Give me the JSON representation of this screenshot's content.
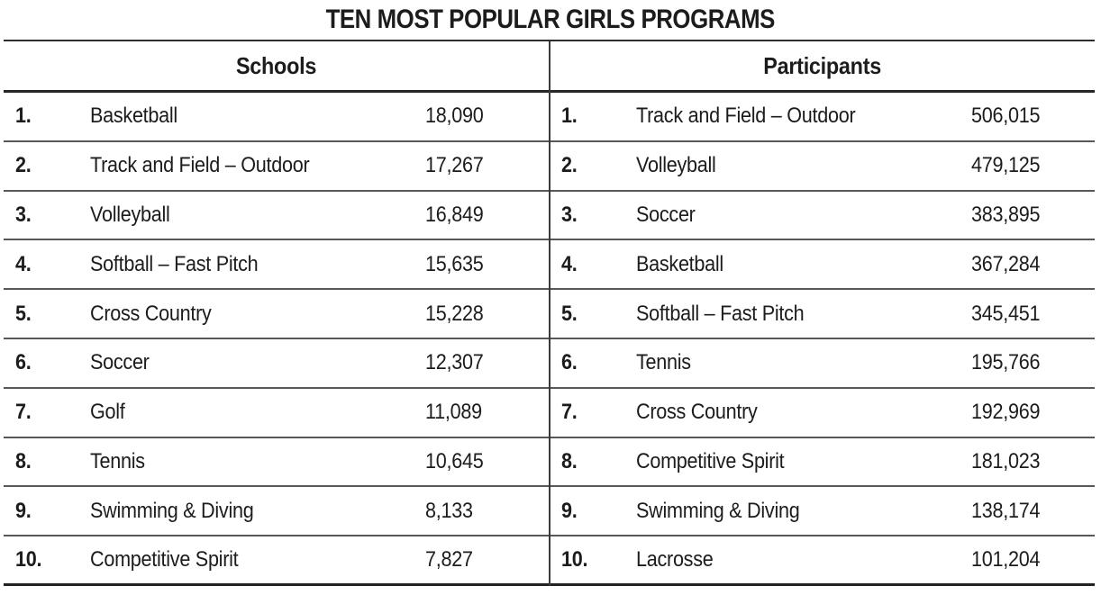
{
  "title": "TEN MOST POPULAR GIRLS PROGRAMS",
  "schools": {
    "header": "Schools",
    "rows": [
      {
        "rank": "1.",
        "name": "Basketball",
        "value": "18,090"
      },
      {
        "rank": "2.",
        "name": "Track and Field – Outdoor",
        "value": "17,267"
      },
      {
        "rank": "3.",
        "name": "Volleyball",
        "value": "16,849"
      },
      {
        "rank": "4.",
        "name": "Softball – Fast Pitch",
        "value": "15,635"
      },
      {
        "rank": "5.",
        "name": "Cross Country",
        "value": "15,228"
      },
      {
        "rank": "6.",
        "name": "Soccer",
        "value": "12,307"
      },
      {
        "rank": "7.",
        "name": "Golf",
        "value": "11,089"
      },
      {
        "rank": "8.",
        "name": "Tennis",
        "value": "10,645"
      },
      {
        "rank": "9.",
        "name": "Swimming & Diving",
        "value": "8,133"
      },
      {
        "rank": "10.",
        "name": "Competitive Spirit",
        "value": "7,827"
      }
    ]
  },
  "participants": {
    "header": "Participants",
    "rows": [
      {
        "rank": "1.",
        "name": "Track and Field – Outdoor",
        "value": "506,015"
      },
      {
        "rank": "2.",
        "name": "Volleyball",
        "value": "479,125"
      },
      {
        "rank": "3.",
        "name": "Soccer",
        "value": "383,895"
      },
      {
        "rank": "4.",
        "name": "Basketball",
        "value": "367,284"
      },
      {
        "rank": "5.",
        "name": "Softball – Fast Pitch",
        "value": "345,451"
      },
      {
        "rank": "6.",
        "name": "Tennis",
        "value": "195,766"
      },
      {
        "rank": "7.",
        "name": "Cross Country",
        "value": "192,969"
      },
      {
        "rank": "8.",
        "name": "Competitive Spirit",
        "value": "181,023"
      },
      {
        "rank": "9.",
        "name": "Swimming & Diving",
        "value": "138,174"
      },
      {
        "rank": "10.",
        "name": "Lacrosse",
        "value": "101,204"
      }
    ]
  },
  "chart_data": {
    "type": "table",
    "title": "TEN MOST POPULAR GIRLS PROGRAMS",
    "sections": [
      {
        "name": "Schools",
        "categories": [
          "Basketball",
          "Track and Field – Outdoor",
          "Volleyball",
          "Softball – Fast Pitch",
          "Cross Country",
          "Soccer",
          "Golf",
          "Tennis",
          "Swimming & Diving",
          "Competitive Spirit"
        ],
        "values": [
          18090,
          17267,
          16849,
          15635,
          15228,
          12307,
          11089,
          10645,
          8133,
          7827
        ]
      },
      {
        "name": "Participants",
        "categories": [
          "Track and Field – Outdoor",
          "Volleyball",
          "Soccer",
          "Basketball",
          "Softball – Fast Pitch",
          "Tennis",
          "Cross Country",
          "Competitive Spirit",
          "Swimming & Diving",
          "Lacrosse"
        ],
        "values": [
          506015,
          479125,
          383895,
          367284,
          345451,
          195766,
          192969,
          181023,
          138174,
          101204
        ]
      }
    ]
  },
  "colors": {
    "text": "#1c1c1c",
    "rule_heavy": "#262626",
    "rule_light": "#585858",
    "background": "#ffffff"
  }
}
